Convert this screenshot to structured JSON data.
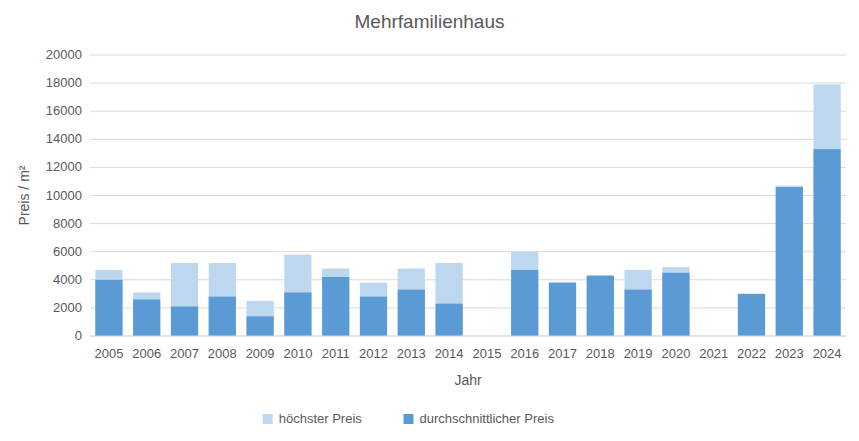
{
  "chart_data": {
    "type": "bar",
    "title": "Mehrfamilienhaus",
    "x_label": "Jahr",
    "y_label": "Preis / m²",
    "categories": [
      "2005",
      "2006",
      "2007",
      "2008",
      "2009",
      "2010",
      "2011",
      "2012",
      "2013",
      "2014",
      "2015",
      "2016",
      "2017",
      "2018",
      "2019",
      "2020",
      "2021",
      "2022",
      "2023",
      "2024"
    ],
    "series": [
      {
        "name": "höchster Preis",
        "color": "#bdd7ee",
        "values": [
          4700,
          3100,
          5200,
          5200,
          2500,
          5800,
          4800,
          3800,
          4800,
          5200,
          null,
          6000,
          3800,
          4300,
          4700,
          4900,
          null,
          3000,
          10700,
          17900
        ]
      },
      {
        "name": "durchschnittlicher Preis",
        "color": "#5b9bd5",
        "values": [
          4000,
          2600,
          2100,
          2800,
          1400,
          3100,
          4200,
          2800,
          3300,
          2300,
          null,
          4700,
          3800,
          4300,
          3300,
          4500,
          null,
          3000,
          10600,
          13300
        ]
      }
    ],
    "ylim": [
      0,
      20000
    ],
    "yticks": [
      0,
      2000,
      4000,
      6000,
      8000,
      10000,
      12000,
      14000,
      16000,
      18000,
      20000
    ],
    "grid": true,
    "legend": "bottom",
    "stacked": false
  }
}
